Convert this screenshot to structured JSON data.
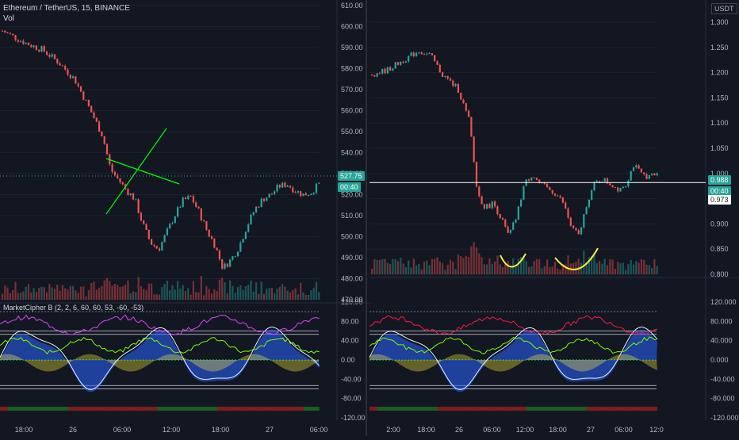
{
  "left_chart": {
    "title": "Ethereum / TetherUS, 15, BINANCE",
    "volume_label": "Vol",
    "price_tag": "527.75",
    "time_tag": "00:40",
    "price_ticks": [
      "610.00",
      "600.00",
      "590.00",
      "580.00",
      "570.00",
      "560.00",
      "550.00",
      "540.00",
      "530.00",
      "520.00",
      "510.00",
      "500.00",
      "490.00",
      "480.00",
      "470.00"
    ],
    "indicator_label": "MarketCipher B (2, 2, 6, 60, 60, 53, -60, -53)",
    "indicator_ticks": [
      "120.00",
      "80.00",
      "40.00",
      "0.00",
      "-40.00",
      "-80.00",
      "-120.00"
    ],
    "time_ticks": [
      "18:00",
      "26",
      "06:00",
      "12:00",
      "18:00",
      "27",
      "06:00"
    ]
  },
  "right_chart": {
    "currency": "USDT",
    "price_tag": "0.988",
    "time_tag": "00:40",
    "line_tag": "0.973",
    "price_ticks": [
      "1.300",
      "1.250",
      "1.200",
      "1.150",
      "1.100",
      "1.050",
      "1.000",
      "0.950",
      "0.900",
      "0.850",
      "0.800"
    ],
    "indicator_ticks": [
      "120.000",
      "80.000",
      "40.000",
      "0.000",
      "-40.000",
      "-80.000",
      "-120.000"
    ],
    "time_ticks": [
      "2:00",
      "18:00",
      "26",
      "06:00",
      "12:00",
      "18:00",
      "27",
      "06:00",
      "12:0"
    ]
  },
  "chart_data": [
    {
      "type": "candlestick",
      "title": "Ethereum / TetherUS, 15, BINANCE",
      "ylim": [
        470,
        610
      ],
      "close_path": [
        [
          0,
          598
        ],
        [
          6,
          592
        ],
        [
          10,
          589
        ],
        [
          14,
          583
        ],
        [
          18,
          575
        ],
        [
          22,
          560
        ],
        [
          25,
          548
        ],
        [
          27,
          532
        ],
        [
          29,
          527
        ],
        [
          31,
          522
        ],
        [
          33,
          518
        ],
        [
          35,
          506
        ],
        [
          37,
          497
        ],
        [
          39,
          494
        ],
        [
          41,
          502
        ],
        [
          43,
          510
        ],
        [
          45,
          517
        ],
        [
          47,
          519
        ],
        [
          49,
          512
        ],
        [
          51,
          503
        ],
        [
          53,
          496
        ],
        [
          55,
          485
        ],
        [
          57,
          489
        ],
        [
          59,
          495
        ],
        [
          61,
          505
        ],
        [
          63,
          513
        ],
        [
          65,
          518
        ],
        [
          67,
          520
        ],
        [
          69,
          524
        ],
        [
          71,
          525
        ],
        [
          73,
          522
        ],
        [
          75,
          520
        ],
        [
          77,
          521
        ],
        [
          79,
          525
        ]
      ],
      "annotations": [
        "green crossing trend lines",
        "dotted price line at 527.75"
      ]
    },
    {
      "type": "candlestick",
      "ylim": [
        0.78,
        1.31
      ],
      "close_path": [
        [
          0,
          1.2
        ],
        [
          4,
          1.21
        ],
        [
          8,
          1.23
        ],
        [
          12,
          1.25
        ],
        [
          15,
          1.24
        ],
        [
          18,
          1.2
        ],
        [
          22,
          1.17
        ],
        [
          25,
          1.1
        ],
        [
          27,
          0.95
        ],
        [
          29,
          0.92
        ],
        [
          31,
          0.93
        ],
        [
          33,
          0.9
        ],
        [
          35,
          0.86
        ],
        [
          37,
          0.9
        ],
        [
          39,
          0.97
        ],
        [
          41,
          0.99
        ],
        [
          43,
          0.97
        ],
        [
          45,
          0.96
        ],
        [
          47,
          0.95
        ],
        [
          49,
          0.93
        ],
        [
          51,
          0.88
        ],
        [
          53,
          0.86
        ],
        [
          55,
          0.93
        ],
        [
          57,
          0.97
        ],
        [
          59,
          0.98
        ],
        [
          61,
          0.97
        ],
        [
          63,
          0.96
        ],
        [
          65,
          0.97
        ],
        [
          67,
          1.01
        ],
        [
          69,
          0.99
        ],
        [
          71,
          0.985
        ],
        [
          73,
          0.99
        ]
      ],
      "horizontal_line": 0.973,
      "annotations": [
        "two yellow arc markers under lows"
      ]
    }
  ],
  "colors": {
    "background": "#131722",
    "up": "#26a69a",
    "down": "#ef5350",
    "accent_green": "#00ff00",
    "yellow": "#ffeb3b",
    "blue": "#2962ff"
  }
}
